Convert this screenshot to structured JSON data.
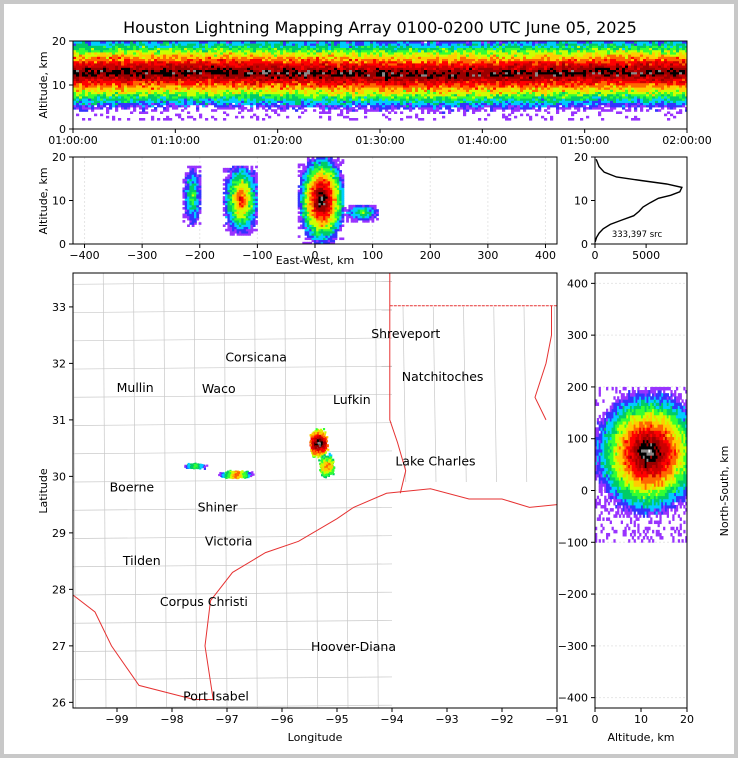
{
  "chart_data": [
    {
      "panel": "altitude-vs-time",
      "type": "heatmap",
      "title": "Houston Lightning Mapping Array 0100-0200 UTC June 05, 2025",
      "ylabel": "Altitude, km",
      "ylim": [
        0,
        20
      ],
      "yticks": [
        "0",
        "10",
        "20"
      ],
      "xlim": [
        "01:00:00",
        "02:00:00"
      ],
      "xticks": [
        "01:00:00",
        "01:10:00",
        "01:20:00",
        "01:30:00",
        "01:40:00",
        "01:50:00",
        "02:00:00"
      ],
      "density_band_km": {
        "core": [
          10,
          15
        ],
        "extent": [
          2,
          20
        ]
      }
    },
    {
      "panel": "altitude-vs-east-west",
      "type": "heatmap",
      "xlabel": "East-West, km",
      "ylabel": "Altitude, km",
      "xlim": [
        -420,
        420
      ],
      "ylim": [
        0,
        20
      ],
      "xticks": [
        "−400",
        "−300",
        "−200",
        "−100",
        "0",
        "100",
        "200",
        "300",
        "400"
      ],
      "yticks": [
        "0",
        "10",
        "20"
      ],
      "clusters": [
        {
          "x_range": [
            -230,
            -200
          ],
          "z_range": [
            4,
            18
          ]
        },
        {
          "x_range": [
            -160,
            -100
          ],
          "z_range": [
            2,
            18
          ]
        },
        {
          "x_range": [
            -30,
            50
          ],
          "z_range": [
            0,
            20
          ]
        },
        {
          "x_range": [
            50,
            110
          ],
          "z_range": [
            5,
            9
          ]
        }
      ]
    },
    {
      "panel": "altitude-histogram",
      "type": "line",
      "annotation": "333,397 src",
      "xlim": [
        0,
        9000
      ],
      "xticks": [
        "0",
        "5000"
      ],
      "ylim": [
        0,
        20
      ],
      "yticks": [
        "0",
        "10",
        "20"
      ],
      "x": [
        20,
        150,
        400,
        800,
        1500,
        2600,
        3800,
        4300,
        4700,
        5400,
        6200,
        7400,
        8300,
        8500,
        7000,
        4500,
        2100,
        900,
        400,
        120
      ],
      "y": [
        0.5,
        1.5,
        2.5,
        3.5,
        4.5,
        5.5,
        6.5,
        7.5,
        8.5,
        9.5,
        10.5,
        11.2,
        12.0,
        13.0,
        13.8,
        14.6,
        15.4,
        16.5,
        17.8,
        19.5
      ]
    },
    {
      "panel": "plan-view-map",
      "type": "scatter",
      "xlabel": "Longitude",
      "ylabel": "Latitude",
      "xlim": [
        -99.8,
        -91.0
      ],
      "ylim": [
        25.9,
        33.6
      ],
      "xticks": [
        "−99",
        "−98",
        "−97",
        "−96",
        "−95",
        "−94",
        "−93",
        "−92",
        "−91"
      ],
      "yticks": [
        "26",
        "27",
        "28",
        "29",
        "30",
        "31",
        "32",
        "33"
      ],
      "clusters": [
        {
          "lon": -95.35,
          "lat": 30.6,
          "level": "high"
        },
        {
          "lon": -95.2,
          "lat": 30.2,
          "level": "medium"
        },
        {
          "lon": -96.85,
          "lat": 30.05,
          "level": "medium"
        },
        {
          "lon": -97.6,
          "lat": 30.2,
          "level": "low"
        }
      ],
      "cities": [
        {
          "name": "Shreveport",
          "lon": -93.75,
          "lat": 32.52,
          "color": "#000000"
        },
        {
          "name": "Corsicana",
          "lon": -96.47,
          "lat": 32.1,
          "color": "#000000"
        },
        {
          "name": "Mullin",
          "lon": -98.67,
          "lat": 31.56,
          "color": "#ff8c5a"
        },
        {
          "name": "Waco",
          "lon": -97.15,
          "lat": 31.55,
          "color": "#000000"
        },
        {
          "name": "Natchitoches",
          "lon": -93.08,
          "lat": 31.76,
          "color": "#000000"
        },
        {
          "name": "Lufkin",
          "lon": -94.73,
          "lat": 31.35,
          "color": "#000000"
        },
        {
          "name": "Lake Charles",
          "lon": -93.21,
          "lat": 30.26,
          "color": "#000000"
        },
        {
          "name": "Boerne",
          "lon": -98.73,
          "lat": 29.8,
          "color": "#000000"
        },
        {
          "name": "Shiner",
          "lon": -97.17,
          "lat": 29.45,
          "color": "#000000"
        },
        {
          "name": "Victoria",
          "lon": -96.97,
          "lat": 28.85,
          "color": "#000000"
        },
        {
          "name": "Tilden",
          "lon": -98.55,
          "lat": 28.5,
          "color": "#000000"
        },
        {
          "name": "Corpus Christi",
          "lon": -97.42,
          "lat": 27.78,
          "color": "#000000"
        },
        {
          "name": "Hoover-Diana",
          "lon": -94.7,
          "lat": 26.98,
          "color": "#1a1aff"
        },
        {
          "name": "Port Isabel",
          "lon": -97.2,
          "lat": 26.1,
          "color": "#000000"
        }
      ]
    },
    {
      "panel": "north-south-vs-altitude",
      "type": "heatmap",
      "xlabel": "Altitude, km",
      "ylabel": "North-South, km",
      "xlim": [
        0,
        20
      ],
      "ylim": [
        -420,
        420
      ],
      "xticks": [
        "0",
        "10",
        "20"
      ],
      "yticks": [
        "−400",
        "−300",
        "−200",
        "−100",
        "0",
        "100",
        "200",
        "300",
        "400"
      ],
      "clusters": [
        {
          "z_range": [
            0,
            20
          ],
          "y_range": [
            -100,
            200
          ]
        },
        {
          "z_range": [
            5,
            18
          ],
          "y_range": [
            30,
            110
          ],
          "level": "high"
        }
      ]
    }
  ]
}
